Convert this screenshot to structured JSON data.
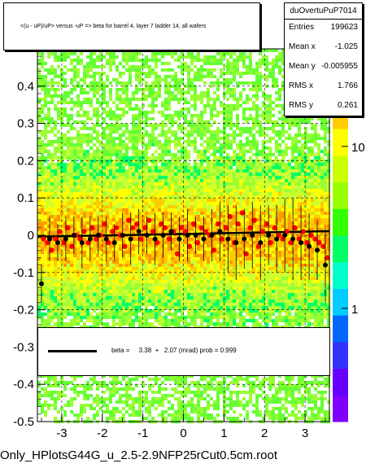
{
  "title": "<(u - uP)/uP> versus -uP => beta for barrel 4, layer 7 ladder 14, all wafers",
  "stats": {
    "name": "duOvertuPuP7014",
    "rows": [
      {
        "label": "Entries",
        "value": "199623"
      },
      {
        "label": "Mean x",
        "value": "-1.025"
      },
      {
        "label": "Mean y",
        "value": "-0.005955"
      },
      {
        "label": "RMS x",
        "value": "1.766"
      },
      {
        "label": "RMS y",
        "value": "0.261"
      }
    ]
  },
  "legend": {
    "text": "beta =     3.38  +   2.07 (mrad) prob = 0.999"
  },
  "footer": "Only_HPlotsG44G_u_2.5-2.9NFP25rCut0.5cm.root",
  "colors": {
    "profile": "#000000",
    "fit": "#ff0000",
    "background": "#ffffff"
  },
  "chart_data": {
    "type": "heatmap",
    "xlim": [
      -3.6,
      3.6
    ],
    "ylim": [
      -0.5,
      0.5
    ],
    "x_ticks": [
      "-3",
      "-2",
      "-1",
      "0",
      "1",
      "2",
      "3"
    ],
    "x_tick_values": [
      -3,
      -2,
      -1,
      0,
      1,
      2,
      3
    ],
    "y_ticks": [
      "-0.5",
      "-0.4",
      "-0.3",
      "-0.2",
      "-0.1",
      "0",
      "0.1",
      "0.2",
      "0.3",
      "0.4"
    ],
    "y_tick_values": [
      -0.5,
      -0.4,
      -0.3,
      -0.2,
      -0.1,
      0,
      0.1,
      0.2,
      0.3,
      0.4
    ],
    "z_scale": "log",
    "z_ticks": [
      "1",
      "10"
    ],
    "z_tick_values": [
      1,
      10
    ],
    "zlim": [
      0.2,
      40
    ],
    "grid": true,
    "fit_line": {
      "p0": 0.00338,
      "p1_per_unit": 0.00207
    },
    "profile": {
      "x": [
        -3.5,
        -3.3,
        -3.1,
        -2.9,
        -2.7,
        -2.5,
        -2.3,
        -2.1,
        -1.9,
        -1.7,
        -1.5,
        -1.3,
        -1.1,
        -0.9,
        -0.7,
        -0.5,
        -0.3,
        -0.1,
        0.1,
        0.3,
        0.5,
        0.7,
        0.9,
        1.1,
        1.3,
        1.5,
        1.7,
        1.9,
        2.1,
        2.3,
        2.5,
        2.7,
        2.9,
        3.1,
        3.3,
        3.5
      ],
      "y": [
        -0.13,
        -0.01,
        -0.02,
        -0.01,
        0.0,
        -0.02,
        -0.01,
        0.0,
        -0.01,
        -0.02,
        0.0,
        -0.01,
        0.01,
        0.0,
        -0.01,
        0.0,
        0.01,
        -0.01,
        0.0,
        0.0,
        -0.01,
        0.0,
        0.01,
        -0.01,
        -0.02,
        -0.01,
        0.0,
        -0.02,
        0.0,
        -0.01,
        0.0,
        -0.01,
        -0.02,
        -0.03,
        -0.04,
        -0.08
      ],
      "err": [
        0.05,
        0.06,
        0.05,
        0.06,
        0.05,
        0.07,
        0.06,
        0.05,
        0.06,
        0.05,
        0.06,
        0.07,
        0.06,
        0.05,
        0.07,
        0.06,
        0.05,
        0.06,
        0.07,
        0.05,
        0.06,
        0.07,
        0.08,
        0.09,
        0.1,
        0.08,
        0.09,
        0.1,
        0.08,
        0.09,
        0.1,
        0.11,
        0.1,
        0.09,
        0.08,
        0.1
      ]
    },
    "red_points": {
      "x": [
        -3.45,
        -3.35,
        -3.25,
        -3.15,
        -3.05,
        -2.95,
        -2.85,
        -2.75,
        -2.65,
        -2.55,
        -2.45,
        -2.35,
        -2.25,
        -2.15,
        -2.05,
        -1.95,
        -1.85,
        -1.75,
        -1.65,
        -1.55,
        -1.45,
        -1.35,
        -1.25,
        -1.15,
        -1.05,
        -0.95,
        -0.85,
        -0.75,
        -0.65,
        -0.55,
        -0.45,
        -0.35,
        -0.25,
        -0.15,
        -0.05,
        0.05,
        0.15,
        0.25,
        0.35,
        0.45,
        0.55,
        0.65,
        0.75,
        0.85,
        0.95,
        1.05,
        1.15,
        1.25,
        1.35,
        1.45,
        1.55,
        1.65,
        1.75,
        1.85,
        1.95,
        2.05,
        2.15,
        2.25,
        2.35,
        2.45,
        2.55,
        2.65,
        2.75,
        2.85,
        2.95,
        3.05,
        3.15,
        3.25,
        3.35,
        3.45,
        3.55
      ],
      "y": [
        -0.01,
        -0.02,
        -0.04,
        -0.01,
        0.01,
        -0.02,
        0.02,
        -0.03,
        0.0,
        -0.01,
        0.01,
        -0.02,
        0.02,
        -0.01,
        0.0,
        0.03,
        -0.02,
        0.01,
        0.02,
        0.0,
        -0.03,
        0.04,
        0.02,
        0.03,
        -0.01,
        0.02,
        0.04,
        0.01,
        -0.02,
        0.03,
        0.02,
        -0.01,
        0.01,
        -0.05,
        0.02,
        0.01,
        -0.03,
        0.03,
        -0.02,
        0.02,
        0.01,
        0.0,
        -0.04,
        0.03,
        -0.01,
        0.02,
        0.05,
        -0.02,
        0.03,
        0.06,
        -0.05,
        0.02,
        0.04,
        -0.03,
        0.01,
        0.03,
        -0.02,
        0.02,
        0.0,
        -0.01,
        0.01,
        -0.02,
        0.02,
        -0.01,
        0.01,
        -0.02,
        0.0,
        -0.01,
        -0.02,
        -0.03,
        -0.06
      ]
    }
  }
}
